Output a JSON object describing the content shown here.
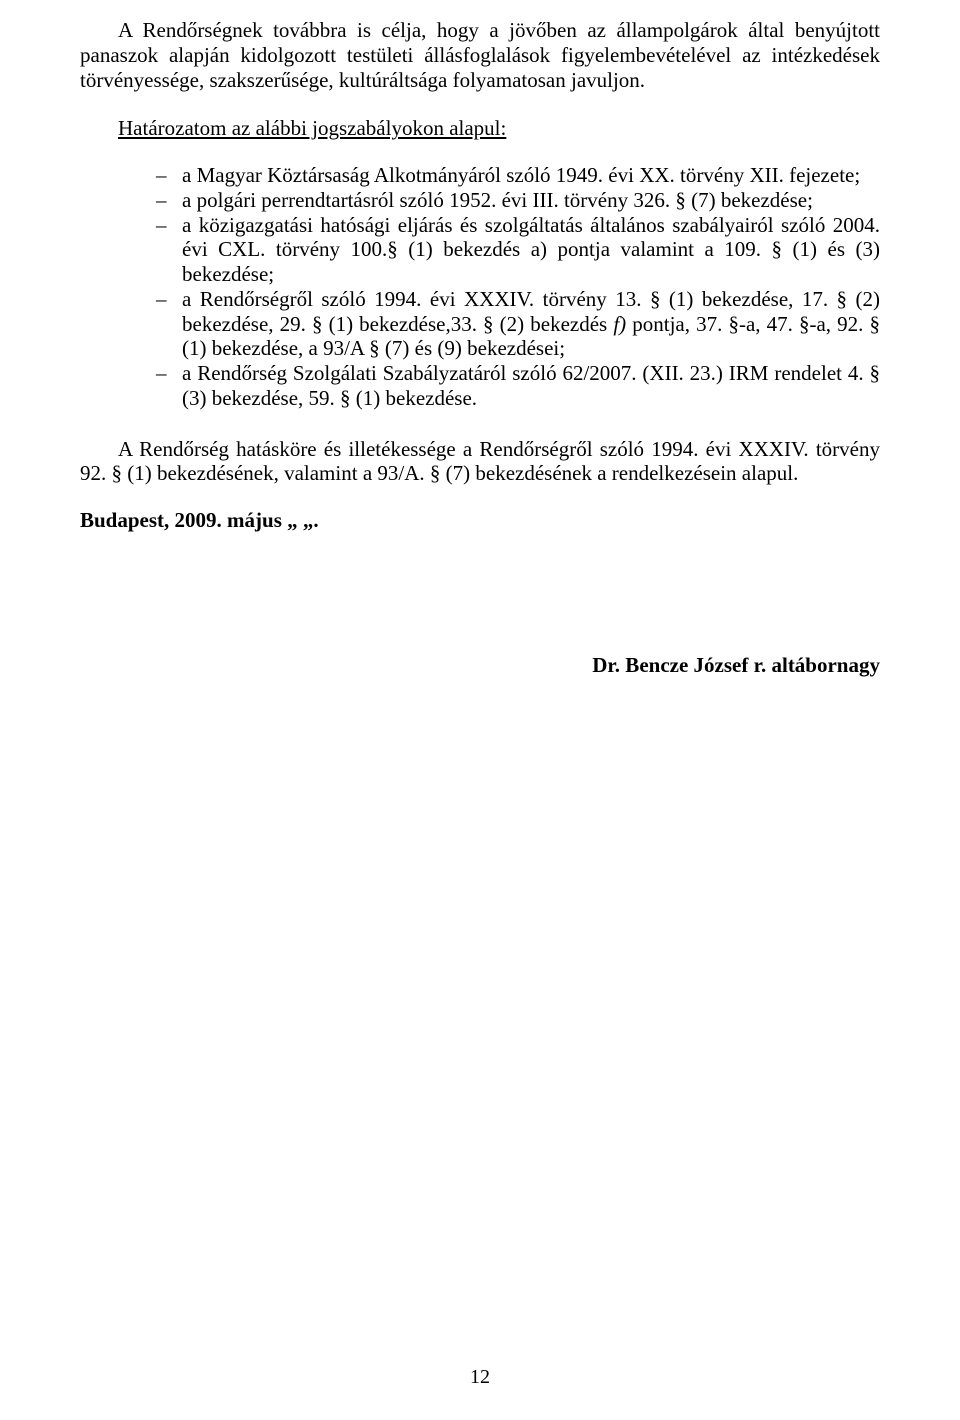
{
  "doc": {
    "intro": "A Rendőrségnek továbbra is célja, hogy a jövőben az állampolgárok által benyújtott panaszok alapján kidolgozott testületi állásfoglalások figyelembevételével az intézkedések törvényessége, szakszerűsége, kultúráltsága folyamatosan javuljon.",
    "basis_heading": "Határozatom az alábbi jogszabályokon alapul:",
    "list": [
      "a Magyar Köztársaság Alkotmányáról szóló 1949. évi XX. törvény XII. fejezete;",
      "a polgári perrendtartásról szóló 1952. évi III. törvény 326. § (7) bekezdése;",
      "a közigazgatási hatósági eljárás és szolgáltatás általános szabályairól szóló 2004. évi CXL. törvény 100.§ (1) bekezdés a) pontja valamint a 109. § (1) és (3) bekezdése;",
      "a Rendőrségről szóló 1994. évi XXXIV. törvény 13. § (1) bekezdése, 17. § (2) bekezdése, 29. § (1) bekezdése,33. § (2) bekezdés f) pontja, 37. §-a, 47. §-a, 92. § (1) bekezdése, a 93/A § (7) és (9) bekezdései;",
      "a Rendőrség Szolgálati Szabályzatáról szóló 62/2007. (XII. 23.) IRM rendelet 4. § (3) bekezdése, 59. § (1) bekezdése."
    ],
    "item4_prefix": "a Rendőrségről szóló 1994. évi XXXIV. törvény 13. § (1) bekezdése, 17. § (2) bekezdése, 29. § (1) bekezdése,33. § (2) bekezdés ",
    "item4_italic": "f)",
    "item4_suffix": " pontja, 37. §-a, 47. §-a, 92. § (1) bekezdése, a 93/A § (7) és (9) bekezdései;",
    "jurisdiction": "A Rendőrség hatásköre és illetékessége a Rendőrségről szóló 1994. évi XXXIV. törvény 92. § (1) bekezdésének, valamint a 93/A. § (7) bekezdésének a rendelkezésein alapul.",
    "dateline": "Budapest, 2009. május „    „.",
    "signature": "Dr. Bencze József r. altábornagy",
    "pagenum": "12"
  }
}
